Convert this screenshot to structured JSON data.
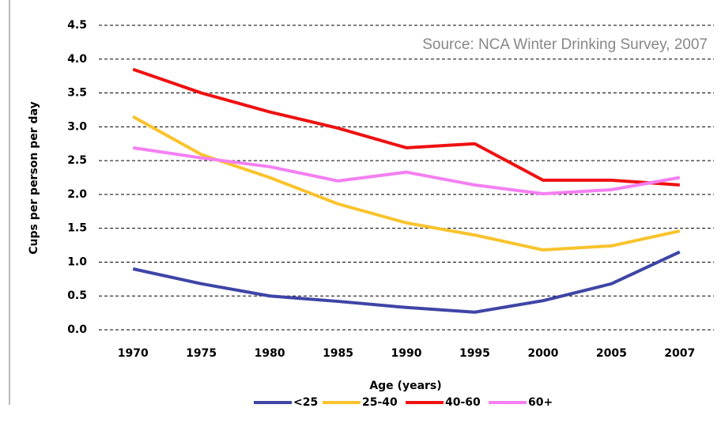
{
  "chart_data": {
    "type": "line",
    "annotation": "Source: NCA Winter Drinking Survey, 2007",
    "x_label": "Age (years)",
    "y_label": "Cups per person per day",
    "categories": [
      "1970",
      "1975",
      "1980",
      "1985",
      "1990",
      "1995",
      "2000",
      "2005",
      "2007"
    ],
    "series": [
      {
        "name": "<25",
        "color": "#3e45a6",
        "values": [
          0.9,
          0.68,
          0.5,
          0.42,
          0.33,
          0.26,
          0.43,
          0.68,
          1.15
        ]
      },
      {
        "name": "25-40",
        "color": "#f9c32c",
        "values": [
          3.15,
          2.59,
          2.25,
          1.86,
          1.58,
          1.4,
          1.18,
          1.24,
          1.46
        ]
      },
      {
        "name": "40-60",
        "color": "#ee1111",
        "values": [
          3.85,
          3.5,
          3.22,
          2.98,
          2.69,
          2.75,
          2.21,
          2.21,
          2.14
        ]
      },
      {
        "name": "60+",
        "color": "#f47ff2",
        "values": [
          2.69,
          2.54,
          2.41,
          2.2,
          2.33,
          2.14,
          2.01,
          2.07,
          2.25
        ]
      }
    ],
    "ylim": [
      0,
      4.5
    ],
    "yticks": [
      {
        "value": 0,
        "label": "0.0"
      },
      0.5,
      {
        "value": 1,
        "label": "1.0"
      },
      1.5,
      {
        "value": 2,
        "label": "2.0"
      },
      2.5,
      {
        "value": 3,
        "label": "3.0"
      },
      3.5,
      {
        "value": 4,
        "label": "4.0"
      },
      4.5
    ],
    "grid": true,
    "legend": "bottom"
  }
}
